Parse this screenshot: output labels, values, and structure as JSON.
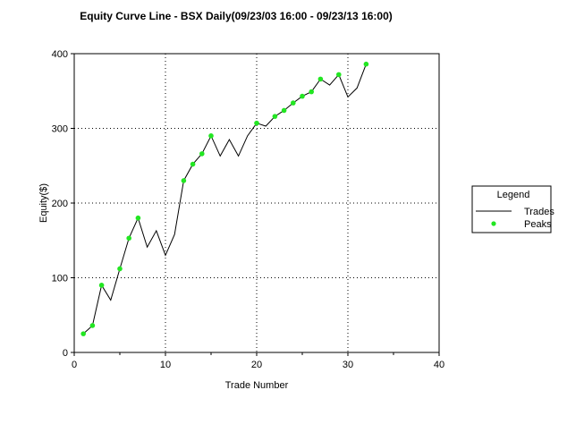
{
  "chart_data": {
    "type": "line",
    "title": "Equity Curve Line - BSX Daily(09/23/03 16:00 - 09/23/13 16:00)",
    "xlabel": "Trade Number",
    "ylabel": "Equity($)",
    "xlim": [
      0,
      40
    ],
    "ylim": [
      0,
      400
    ],
    "xticks": [
      0,
      10,
      20,
      30,
      40
    ],
    "yticks": [
      0,
      100,
      200,
      300,
      400
    ],
    "grid": true,
    "legend": {
      "title": "Legend",
      "position": "right",
      "entries": [
        "Trades",
        "Peaks"
      ]
    },
    "series": [
      {
        "name": "Trades",
        "color": "#000000",
        "x": [
          1,
          2,
          3,
          4,
          5,
          6,
          7,
          8,
          9,
          10,
          11,
          12,
          13,
          14,
          15,
          16,
          17,
          18,
          19,
          20,
          21,
          22,
          23,
          24,
          25,
          26,
          27,
          28,
          29,
          30,
          31,
          32
        ],
        "y": [
          25,
          36,
          90,
          70,
          112,
          153,
          180,
          141,
          163,
          130,
          158,
          230,
          252,
          266,
          290,
          263,
          285,
          263,
          290,
          307,
          303,
          316,
          324,
          334,
          343,
          349,
          366,
          358,
          372,
          342,
          354,
          386
        ]
      },
      {
        "name": "Peaks",
        "color": "#22e622",
        "x": [
          1,
          2,
          3,
          5,
          6,
          7,
          12,
          13,
          14,
          15,
          20,
          22,
          23,
          24,
          25,
          26,
          27,
          29,
          32
        ],
        "y": [
          25,
          36,
          90,
          112,
          153,
          180,
          230,
          252,
          266,
          290,
          307,
          316,
          324,
          334,
          343,
          349,
          366,
          372,
          386
        ]
      }
    ]
  }
}
